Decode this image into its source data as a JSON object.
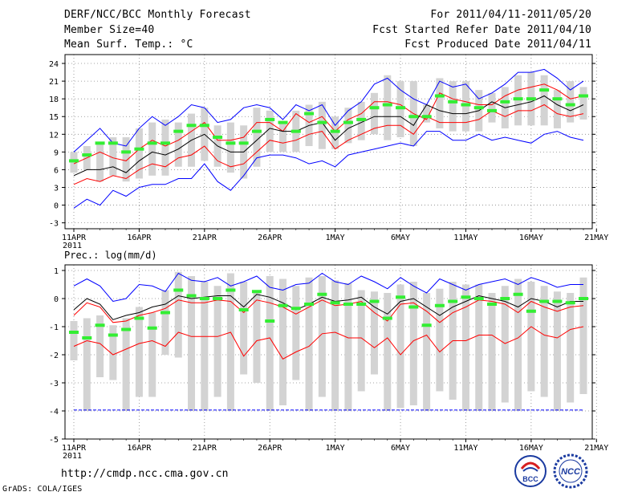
{
  "header": {
    "title": "DERF/NCC/BCC Monthly Forecast",
    "member_size": "Member Size=40",
    "variable": "Mean Surf. Temp.: °C",
    "period": "For 2011/04/11-2011/05/20",
    "started": "Fcst Started Refer Date 2011/04/10",
    "produced": "Fcst Produced Date 2011/04/11"
  },
  "footer": {
    "url": "http://cmdp.ncc.cma.gov.cn",
    "credit": "GrADS: COLA/IGES",
    "logo1": "BCC",
    "logo2": "NCC"
  },
  "colors": {
    "max_min": "#0000ff",
    "quartile": "#ff0000",
    "mean": "#000000",
    "spread_bar": "#d3d3d3",
    "median_mark": "#33ee33"
  },
  "chart_data": [
    {
      "type": "line",
      "title": "Mean Surf. Temp.: °C",
      "xlabel": "",
      "ylabel": "",
      "x_tick_labels": [
        "11APR",
        "16APR",
        "21APR",
        "26APR",
        "1MAY",
        "6MAY",
        "11MAY",
        "16MAY",
        "21MAY"
      ],
      "year_label": "2011",
      "y_tick_labels": [
        "-3",
        "0",
        "3",
        "6",
        "9",
        "12",
        "15",
        "18",
        "21",
        "24"
      ],
      "ylim": [
        -4,
        25.5
      ],
      "y_ticks": [
        -3,
        0,
        3,
        6,
        9,
        12,
        15,
        18,
        21,
        24
      ],
      "grid": true,
      "days": [
        0,
        1,
        2,
        3,
        4,
        5,
        6,
        7,
        8,
        9,
        10,
        11,
        12,
        13,
        14,
        15,
        16,
        17,
        18,
        19,
        20,
        21,
        22,
        23,
        24,
        25,
        26,
        27,
        28,
        29,
        30,
        31,
        32,
        33,
        34,
        35,
        36,
        37,
        38,
        39
      ],
      "series": [
        {
          "name": "max",
          "color": "#0000ff",
          "values": [
            9,
            11,
            13,
            10.5,
            10,
            13,
            15,
            13.5,
            15,
            17,
            16.5,
            14,
            14.5,
            16.5,
            17,
            16.5,
            14.5,
            17,
            16,
            17,
            13.5,
            16,
            17.5,
            20.5,
            21.5,
            19.5,
            18,
            17,
            21,
            20,
            20.5,
            18,
            19,
            20.5,
            22.5,
            22.5,
            23,
            21.5,
            19.5,
            21
          ]
        },
        {
          "name": "upper",
          "color": "#ff0000",
          "values": [
            7,
            8,
            9,
            8,
            7.5,
            9.5,
            11,
            10,
            11,
            12.5,
            14,
            11,
            11,
            11.5,
            14,
            14,
            12.5,
            15.5,
            14,
            15,
            12.5,
            14.5,
            15.5,
            17.5,
            17.5,
            17,
            15.5,
            14.5,
            19,
            18,
            17.5,
            17,
            17,
            18.5,
            19.5,
            20,
            20.5,
            19.5,
            18,
            18.5
          ]
        },
        {
          "name": "mean",
          "color": "#000000",
          "values": [
            5,
            6,
            6,
            6.5,
            5.5,
            7.5,
            9,
            8.5,
            9.5,
            11,
            12,
            10,
            9,
            9,
            11,
            13,
            12.5,
            12.5,
            13.5,
            14,
            11,
            13,
            14,
            15,
            15,
            15,
            13.5,
            17,
            16,
            15.5,
            15.5,
            16,
            17.5,
            16.5,
            17,
            17.5,
            18.5,
            17,
            16,
            17
          ]
        },
        {
          "name": "lower",
          "color": "#ff0000",
          "values": [
            3.5,
            4.5,
            4,
            5,
            4.5,
            6,
            7,
            6.5,
            8,
            8.5,
            10,
            7.5,
            6.5,
            7,
            9,
            11,
            10.5,
            11,
            12,
            12.5,
            9.5,
            11,
            12,
            13,
            13.5,
            13.5,
            12,
            15,
            14,
            14,
            14,
            14.5,
            16,
            15,
            16,
            16,
            17,
            15.5,
            15,
            15.5
          ]
        },
        {
          "name": "min",
          "color": "#0000ff",
          "values": [
            -0.5,
            1,
            0,
            2.5,
            1.5,
            3,
            3.5,
            3.5,
            4.5,
            4.5,
            7,
            4,
            2.5,
            5,
            8,
            8.5,
            8.5,
            8,
            7,
            7.5,
            6.5,
            8.5,
            9,
            9.5,
            10,
            10.5,
            10,
            12.5,
            12.5,
            11,
            11,
            12,
            11,
            11.5,
            11,
            10.5,
            12,
            12.5,
            11.5,
            11
          ]
        }
      ],
      "spread": {
        "low": [
          5.5,
          6,
          4,
          5,
          4,
          4.5,
          5,
          5,
          6.5,
          6.5,
          7.5,
          6.5,
          5.5,
          4.5,
          6.5,
          9,
          9,
          9,
          10,
          9.5,
          9.5,
          10.5,
          11,
          12,
          11,
          11.5,
          10,
          14,
          13,
          12.5,
          12.5,
          12.5,
          14,
          13,
          13.5,
          13.5,
          13.5,
          13,
          14,
          14.5
        ],
        "high": [
          9,
          10,
          10.5,
          11.5,
          11.5,
          13,
          14,
          14.5,
          14,
          15.5,
          16.5,
          13.5,
          14,
          13.5,
          16.5,
          16,
          14,
          16,
          17,
          17.5,
          15,
          16.5,
          17.5,
          19,
          22,
          21,
          21,
          17,
          21.5,
          21,
          21,
          19.5,
          19,
          20,
          22,
          22.5,
          22,
          19.5,
          21,
          20
        ]
      },
      "median": [
        7.5,
        8.5,
        10.5,
        10.5,
        9,
        9.5,
        10.5,
        10.5,
        12.5,
        13.5,
        13.5,
        11.5,
        10.5,
        10.5,
        12.5,
        14.5,
        14,
        12.5,
        15.5,
        14,
        12.5,
        14,
        14.5,
        16.5,
        17,
        16.5,
        15,
        15,
        18.5,
        17.5,
        17,
        16.5,
        16,
        17.5,
        18,
        18,
        19.5,
        18,
        17,
        18.5
      ]
    },
    {
      "type": "line",
      "title": "Prec.: log(mm/d)",
      "xlabel": "",
      "ylabel": "",
      "x_tick_labels": [
        "11APR",
        "16APR",
        "21APR",
        "26APR",
        "1MAY",
        "6MAY",
        "11MAY",
        "16MAY",
        "21MAY"
      ],
      "year_label": "2011",
      "y_tick_labels": [
        "-5",
        "-4",
        "-3",
        "-2",
        "-1",
        "0",
        "1"
      ],
      "ylim": [
        -5,
        1.2
      ],
      "y_ticks": [
        -5,
        -4,
        -3,
        -2,
        -1,
        0,
        1
      ],
      "grid": true,
      "days": [
        0,
        1,
        2,
        3,
        4,
        5,
        6,
        7,
        8,
        9,
        10,
        11,
        12,
        13,
        14,
        15,
        16,
        17,
        18,
        19,
        20,
        21,
        22,
        23,
        24,
        25,
        26,
        27,
        28,
        29,
        30,
        31,
        32,
        33,
        34,
        35,
        36,
        37,
        38,
        39
      ],
      "series": [
        {
          "name": "max",
          "color": "#0000ff",
          "values": [
            0.45,
            0.7,
            0.45,
            -0.1,
            0,
            0.5,
            0.45,
            0.25,
            0.9,
            0.65,
            0.6,
            0.75,
            0.45,
            0.6,
            0.8,
            0.4,
            0.3,
            0.5,
            0.55,
            0.9,
            0.6,
            0.5,
            0.8,
            0.6,
            0.35,
            0.75,
            0.45,
            0.2,
            0.7,
            0.5,
            0.3,
            0.5,
            0.6,
            0.7,
            0.5,
            0.75,
            0.6,
            0.4,
            0.5,
            0.5
          ]
        },
        {
          "name": "mean",
          "color": "#000000",
          "values": [
            -0.4,
            0,
            -0.2,
            -0.75,
            -0.6,
            -0.5,
            -0.3,
            -0.2,
            0.1,
            0,
            0.05,
            0.1,
            0.1,
            -0.3,
            0.15,
            0.05,
            -0.15,
            -0.4,
            -0.2,
            0.05,
            -0.1,
            -0.05,
            0.05,
            -0.3,
            -0.55,
            -0.1,
            0,
            -0.3,
            -0.6,
            -0.3,
            -0.1,
            0.1,
            0,
            -0.1,
            -0.3,
            0,
            -0.1,
            -0.3,
            -0.1,
            -0.1
          ]
        },
        {
          "name": "upper",
          "color": "#ff0000",
          "values": [
            -0.6,
            -0.15,
            -0.3,
            -0.85,
            -0.8,
            -0.6,
            -0.5,
            -0.35,
            -0.05,
            -0.15,
            -0.15,
            -0.05,
            -0.1,
            -0.5,
            -0.05,
            -0.15,
            -0.3,
            -0.55,
            -0.3,
            -0.05,
            -0.25,
            -0.2,
            -0.1,
            -0.5,
            -0.8,
            -0.2,
            -0.15,
            -0.45,
            -0.85,
            -0.5,
            -0.3,
            -0.05,
            -0.1,
            -0.2,
            -0.5,
            -0.1,
            -0.3,
            -0.45,
            -0.3,
            -0.25
          ]
        },
        {
          "name": "lower",
          "color": "#ff0000",
          "values": [
            -1.7,
            -1.5,
            -1.6,
            -2.0,
            -1.8,
            -1.6,
            -1.5,
            -1.7,
            -1.2,
            -1.35,
            -1.35,
            -1.35,
            -1.2,
            -2.05,
            -1.5,
            -1.4,
            -2.15,
            -1.9,
            -1.7,
            -1.25,
            -1.2,
            -1.4,
            -1.4,
            -1.75,
            -1.4,
            -2.0,
            -1.5,
            -1.3,
            -1.9,
            -1.5,
            -1.5,
            -1.3,
            -1.3,
            -1.6,
            -1.4,
            -1.0,
            -1.3,
            -1.4,
            -1.1,
            -1.0
          ]
        },
        {
          "name": "min",
          "color": "#0000ff",
          "values": [
            -3.97,
            -3.97,
            -3.97,
            -3.97,
            -3.97,
            -3.97,
            -3.97,
            -3.97,
            -3.97,
            -3.97,
            -3.97,
            -3.97,
            -3.97,
            -3.97,
            -3.97,
            -3.97,
            -3.97,
            -3.97,
            -3.97,
            -3.97,
            -3.97,
            -3.97,
            -3.97,
            -3.97,
            -3.97,
            -3.97,
            -3.97,
            -3.97,
            -3.97,
            -3.97,
            -3.97,
            -3.97,
            -3.97,
            -3.97,
            -3.97,
            -3.97,
            -3.97,
            -3.97,
            -3.97,
            -3.97
          ]
        }
      ],
      "spread": {
        "low": [
          -2.2,
          -4,
          -2.8,
          -2.9,
          -4,
          -3.5,
          -3.5,
          -2,
          -2.1,
          -4,
          -4,
          -3.5,
          -4,
          -2.7,
          -3,
          -4,
          -3.8,
          -2.9,
          -4,
          -3.5,
          -4,
          -4,
          -3.3,
          -2.7,
          -4,
          -3.9,
          -3.8,
          -4,
          -3.3,
          -3.6,
          -4,
          -4,
          -4,
          -3.7,
          -4,
          -3.3,
          -3.5,
          -4,
          -3.7,
          -3.4
        ],
        "high": [
          -0.8,
          -0.7,
          -0.6,
          -0.95,
          -0.7,
          -0.3,
          -0.5,
          0.3,
          0.95,
          0.8,
          0.6,
          0.45,
          0.9,
          0.6,
          0.3,
          0.8,
          0.7,
          0.45,
          0.75,
          0.8,
          0.65,
          0.55,
          0.3,
          0.25,
          0.2,
          0.5,
          0.6,
          0.2,
          0.35,
          0.6,
          0.5,
          0.5,
          0.2,
          0.45,
          0.7,
          0.6,
          0.45,
          0.25,
          0.2,
          0.75
        ]
      },
      "median": [
        -1.2,
        -1.4,
        -0.95,
        -1.3,
        -1.1,
        -0.7,
        -1.05,
        -0.5,
        0.3,
        0.1,
        0,
        0,
        0.3,
        -0.4,
        0.25,
        -0.8,
        -0.25,
        -0.35,
        -0.2,
        0.15,
        -0.15,
        -0.2,
        -0.2,
        -0.1,
        -0.7,
        0.05,
        -0.3,
        -0.95,
        -0.25,
        -0.1,
        0.05,
        0,
        -0.2,
        0,
        0.15,
        -0.45,
        -0.1,
        -0.1,
        -0.15,
        0
      ]
    }
  ]
}
